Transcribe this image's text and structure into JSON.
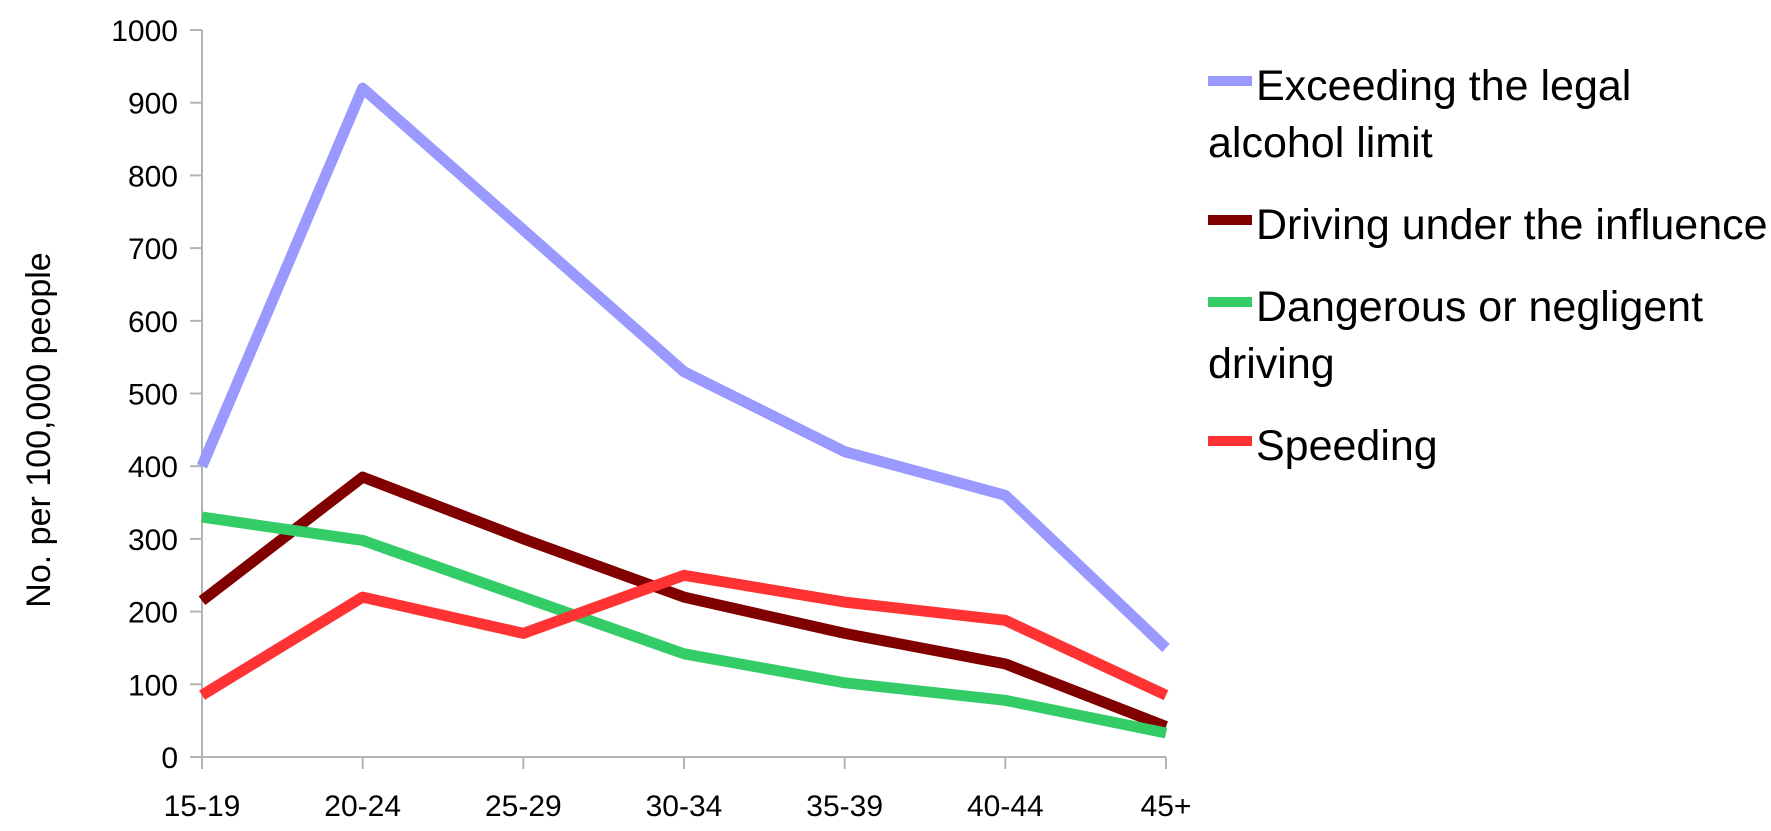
{
  "chart_data": {
    "type": "line",
    "title": "",
    "xlabel": "",
    "ylabel": "No. per 100,000 people",
    "categories": [
      "15-19",
      "20-24",
      "25-29",
      "30-34",
      "35-39",
      "40-44",
      "45+"
    ],
    "ylim": [
      0,
      1000
    ],
    "yticks": [
      "0",
      "100",
      "200",
      "300",
      "400",
      "500",
      "600",
      "700",
      "800",
      "900",
      "1000"
    ],
    "grid": false,
    "legend_position": "right",
    "series": [
      {
        "name": "Exceeding the legal alcohol limit",
        "color": "#9999ff",
        "values": [
          400,
          920,
          725,
          530,
          420,
          360,
          150
        ]
      },
      {
        "name": "Driving under the influence",
        "color": "#800000",
        "values": [
          215,
          385,
          300,
          220,
          170,
          128,
          42
        ]
      },
      {
        "name": "Dangerous or negligent driving",
        "color": "#33cc66",
        "values": [
          330,
          298,
          220,
          142,
          102,
          78,
          33
        ]
      },
      {
        "name": "Speeding",
        "color": "#ff3333",
        "values": [
          85,
          220,
          170,
          250,
          213,
          188,
          85
        ]
      }
    ]
  }
}
